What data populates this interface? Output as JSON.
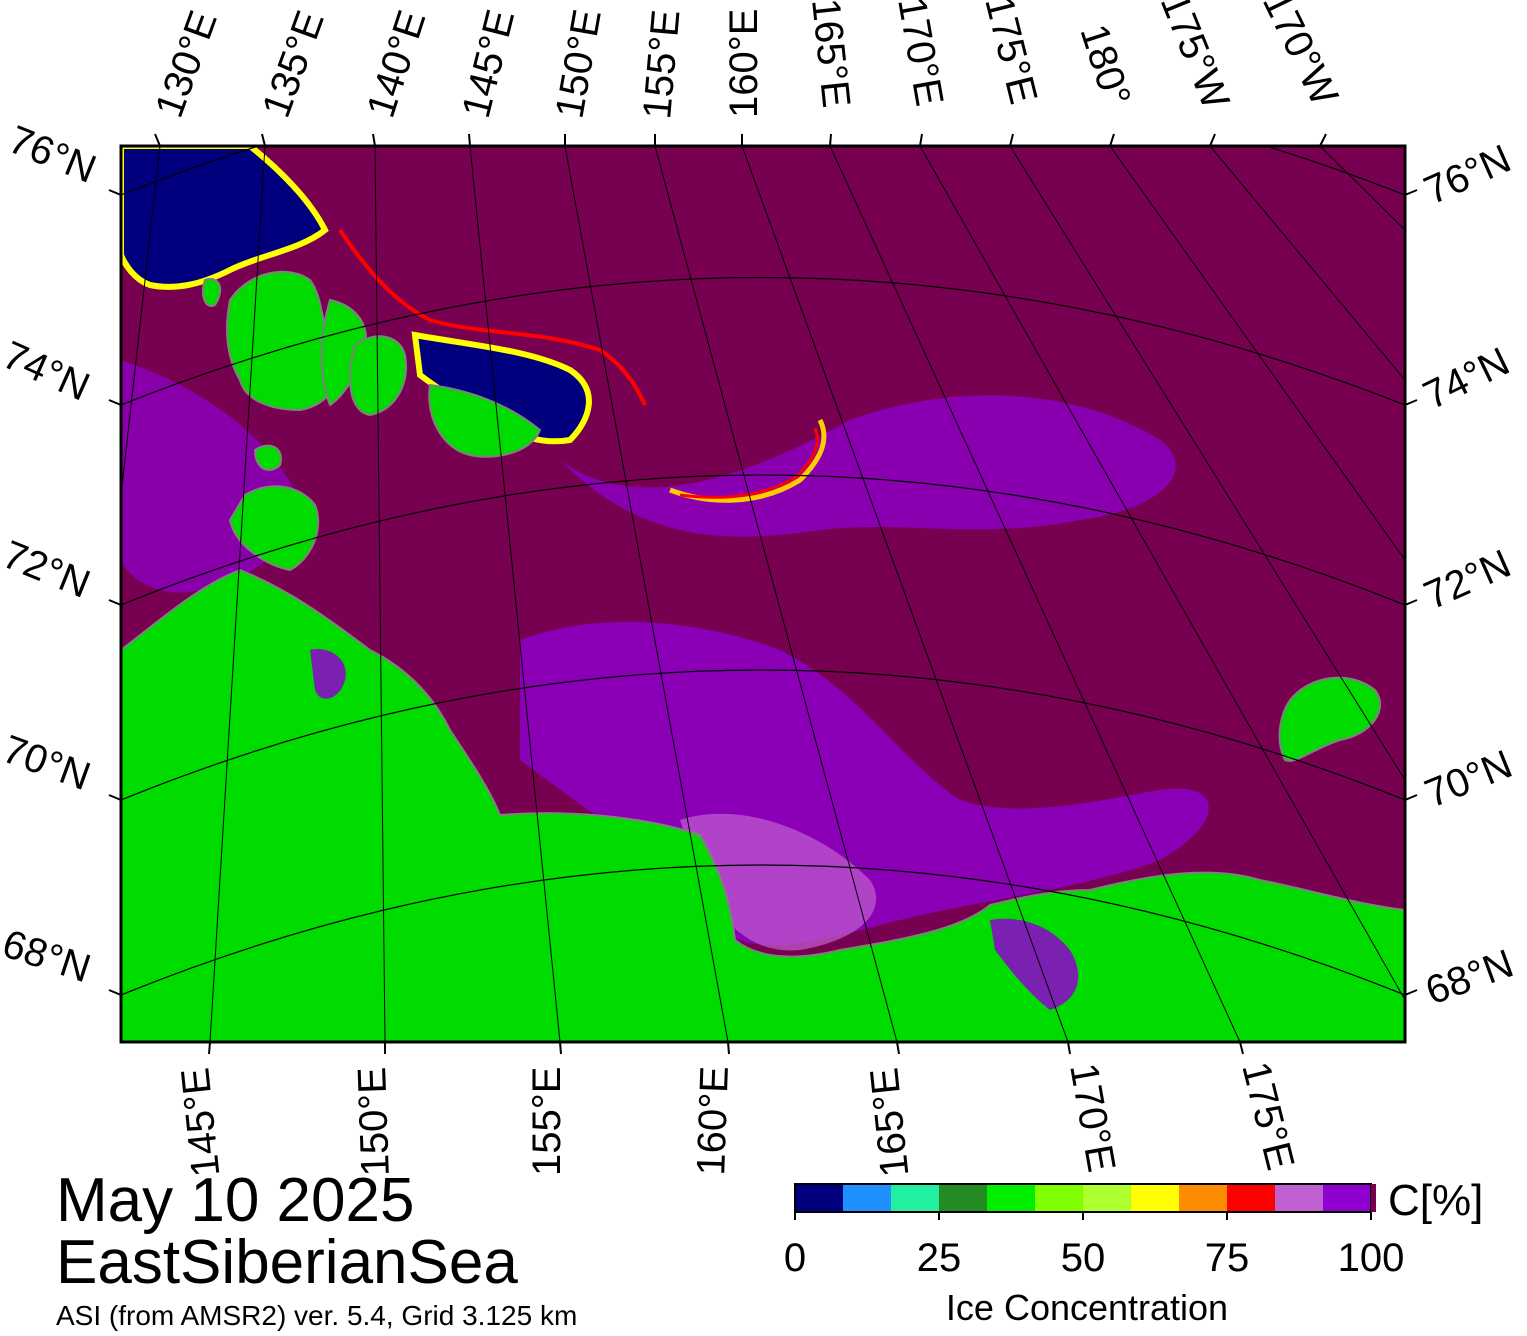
{
  "map": {
    "date": "May 10 2025",
    "region": "EastSiberianSea",
    "product": "ASI (from AMSR2) ver. 5.4,  Grid 3.125 km",
    "colors": {
      "open_ice": "#780050",
      "land": "#00dc00",
      "land_mask": "#808080",
      "open_water": "#00007f"
    },
    "top_longitude_labels": [
      "130°E",
      "135°E",
      "140°E",
      "145°E",
      "150°E",
      "155°E",
      "160°E",
      "165°E",
      "170°E",
      "175°E",
      "180°",
      "175°W",
      "170°W"
    ],
    "bottom_longitude_labels": [
      "145°E",
      "150°E",
      "155°E",
      "160°E",
      "165°E",
      "170°E",
      "175°E"
    ],
    "left_latitude_labels": [
      "76°N",
      "74°N",
      "72°N",
      "70°N",
      "68°N"
    ],
    "right_latitude_labels": [
      "76°N",
      "74°N",
      "72°N",
      "70°N",
      "68°N"
    ]
  },
  "colorbar": {
    "unit": "C[%]",
    "label": "Ice Concentration",
    "ticks": [
      "0",
      "25",
      "50",
      "75",
      "100"
    ],
    "colors": [
      "#00007f",
      "#1e90ff",
      "#20f0a0",
      "#228b22",
      "#00ee00",
      "#7fff00",
      "#adff2f",
      "#ffff00",
      "#ff8c00",
      "#ff0000",
      "#c060d0",
      "#9000d0"
    ],
    "max_color": "#780050"
  }
}
